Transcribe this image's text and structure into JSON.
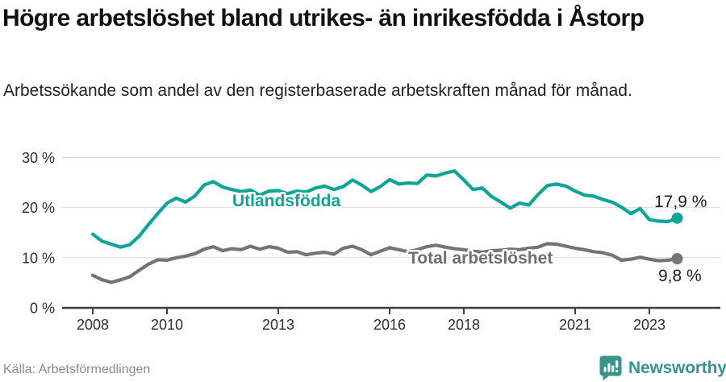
{
  "header": {
    "title": "Högre arbetslöshet bland utrikes- än inrikesfödda i Åstorp",
    "subtitle": "Arbetssökande som andel av den registerbaserade arbetskraften månad för månad."
  },
  "footer": {
    "source": "Källa: Arbetsförmedlingen",
    "logo_text": "Newsworthy",
    "logo_icon": "bar-chart-speech-bubble-icon"
  },
  "colors": {
    "series_foreign_born": "#0ea496",
    "series_total": "#73737a",
    "total_label_text": "#6e6e78",
    "axis": "#3f3f3f",
    "grid": "#dadada",
    "logo_teal": "#3a948c",
    "source_text": "#8a8a8a"
  },
  "chart_data": {
    "type": "line",
    "title": "Högre arbetslöshet bland utrikes- än inrikesfödda i Åstorp",
    "subtitle": "Arbetssökande som andel av den registerbaserade arbetskraften månad för månad.",
    "source": "Källa: Arbetsförmedlingen",
    "unit": "percent of registered labour force",
    "x_unit": "year (monthly data)",
    "x_start": 2008.0,
    "x_step": 0.25,
    "x_range": [
      2007.15,
      2024.9
    ],
    "ylim": [
      0,
      32
    ],
    "grid": true,
    "legend_position": "inline-labels",
    "x_axis": {
      "ticks": [
        {
          "year": 2008,
          "label": "2008"
        },
        {
          "year": 2010,
          "label": "2010"
        },
        {
          "year": 2013,
          "label": "2013"
        },
        {
          "year": 2016,
          "label": "2016"
        },
        {
          "year": 2018,
          "label": "2018"
        },
        {
          "year": 2021,
          "label": "2021"
        },
        {
          "year": 2023,
          "label": "2023"
        }
      ]
    },
    "y_axis": {
      "ticks": [
        {
          "value": 0,
          "label": "0 %"
        },
        {
          "value": 10,
          "label": "10 %"
        },
        {
          "value": 20,
          "label": "20 %"
        },
        {
          "value": 30,
          "label": "30 %"
        }
      ]
    },
    "series": [
      {
        "name": "Utlandsfödda",
        "color": "#0ea496",
        "end_value": 17.9,
        "end_label": "17,9 %",
        "values": [
          14.7,
          13.3,
          12.7,
          12.1,
          12.6,
          14.3,
          16.6,
          18.8,
          20.9,
          21.9,
          21.1,
          22.3,
          24.5,
          25.2,
          24.1,
          23.6,
          23.2,
          23.5,
          22.5,
          23.3,
          23.4,
          22.8,
          23.3,
          23.1,
          23.9,
          24.3,
          23.6,
          24.2,
          25.5,
          24.5,
          23.2,
          24.2,
          25.6,
          24.7,
          24.9,
          24.8,
          26.5,
          26.3,
          26.9,
          27.3,
          25.5,
          23.6,
          23.9,
          22.2,
          21.1,
          19.9,
          20.9,
          20.5,
          22.6,
          24.4,
          24.7,
          24.3,
          23.3,
          22.5,
          22.3,
          21.6,
          21.1,
          20.1,
          18.8,
          19.8,
          17.6,
          17.3,
          17.2,
          17.9
        ]
      },
      {
        "name": "Total arbetslöshet",
        "color": "#73737a",
        "end_value": 9.8,
        "end_label": "9,8 %",
        "values": [
          6.5,
          5.6,
          5.1,
          5.6,
          6.2,
          7.5,
          8.7,
          9.6,
          9.5,
          10.0,
          10.3,
          10.8,
          11.7,
          12.2,
          11.4,
          11.8,
          11.6,
          12.3,
          11.7,
          12.2,
          11.9,
          11.1,
          11.2,
          10.6,
          10.9,
          11.1,
          10.7,
          11.9,
          12.3,
          11.6,
          10.6,
          11.3,
          12.0,
          11.6,
          11.2,
          11.6,
          12.2,
          12.5,
          12.1,
          11.8,
          11.6,
          11.3,
          11.1,
          11.4,
          11.5,
          11.7,
          11.6,
          11.9,
          12.1,
          12.8,
          12.7,
          12.3,
          11.9,
          11.6,
          11.2,
          11.0,
          10.5,
          9.5,
          9.7,
          10.1,
          9.7,
          9.4,
          9.5,
          9.8
        ]
      }
    ]
  }
}
